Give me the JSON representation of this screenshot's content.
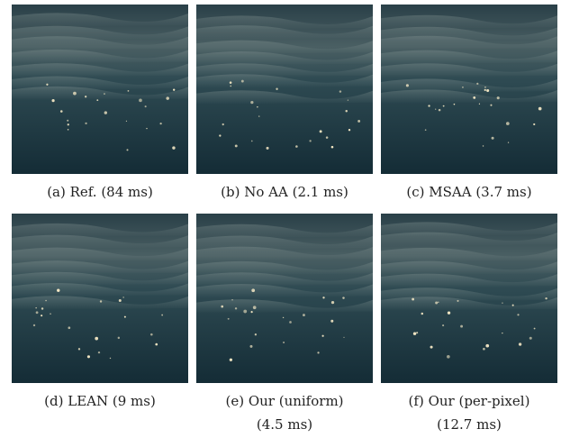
{
  "figure": {
    "panels": [
      {
        "caption": [
          "(a) Ref. (84 ms)"
        ]
      },
      {
        "caption": [
          "(b) No AA (2.1 ms)"
        ]
      },
      {
        "caption": [
          "(c) MSAA (3.7 ms)"
        ]
      },
      {
        "caption": [
          "(d) LEAN (9 ms)"
        ]
      },
      {
        "caption": [
          "(e) Our (uniform)",
          "(4.5 ms)"
        ]
      },
      {
        "caption": [
          "(f) Our (per-pixel)",
          "(12.7 ms)"
        ]
      }
    ]
  }
}
